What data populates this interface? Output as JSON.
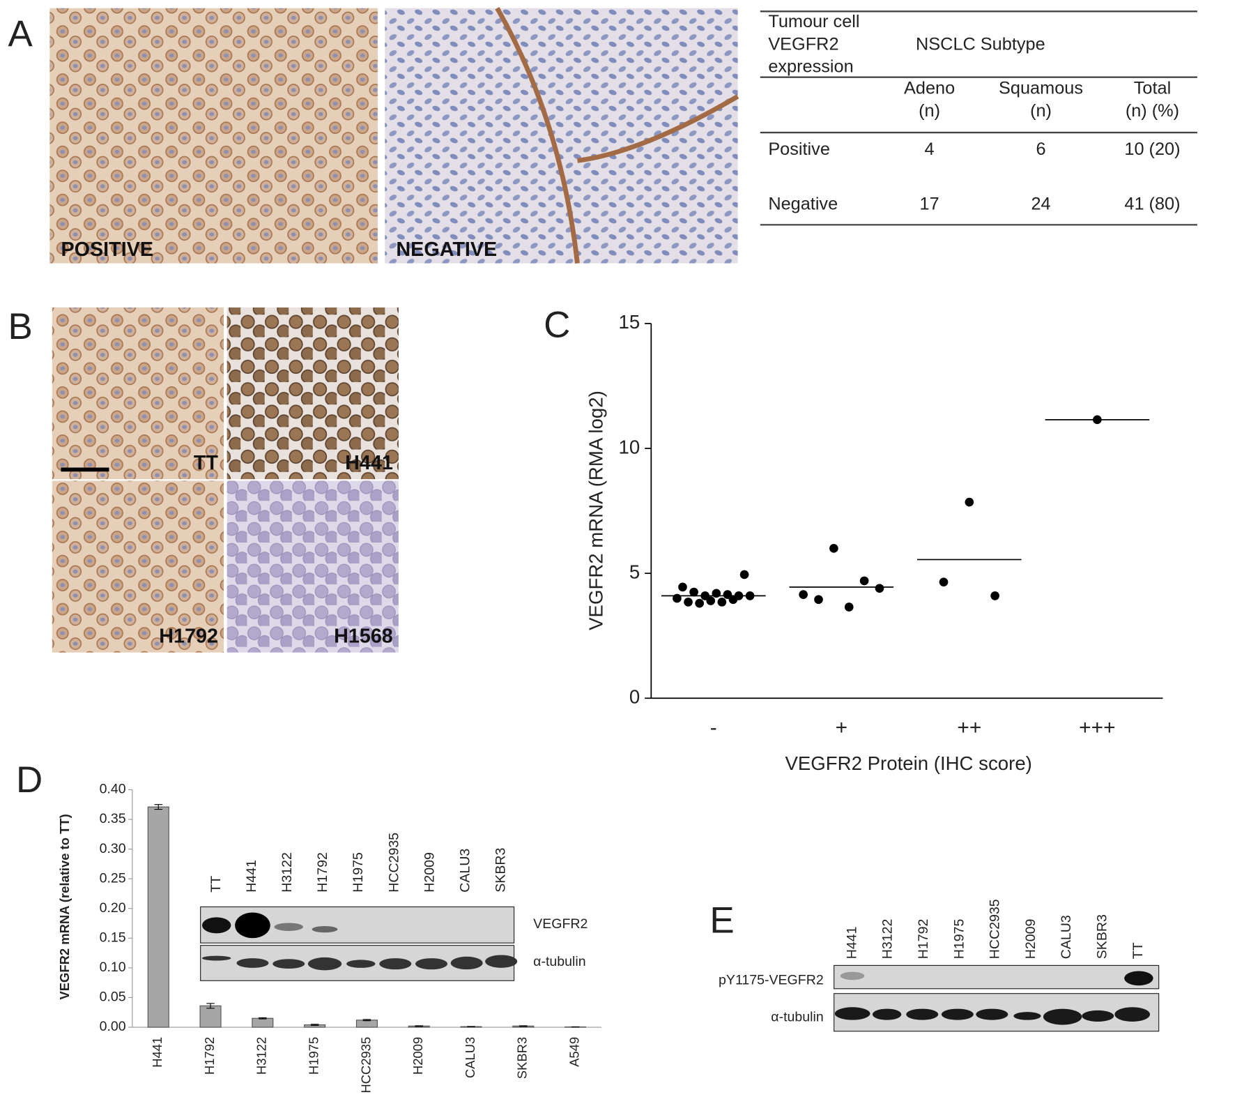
{
  "panel_labels": [
    "A",
    "B",
    "C",
    "D",
    "E"
  ],
  "micrographs": {
    "panel_a": [
      "POSITIVE",
      "NEGATIVE"
    ],
    "panel_b": [
      "TT",
      "H441",
      "H1792",
      "H1568"
    ]
  },
  "table": {
    "row_header": [
      "Tumour cell",
      "VEGFR2",
      "expression"
    ],
    "group_header": "NSCLC Subtype",
    "columns": [
      [
        "Adeno",
        "(n)"
      ],
      [
        "Squamous",
        "(n)"
      ],
      [
        "Total",
        "(n) (%)"
      ]
    ],
    "rows": [
      [
        "Positive",
        4,
        6,
        "10 (20)"
      ],
      [
        "Negative",
        17,
        24,
        "41 (80)"
      ]
    ]
  },
  "chart_data": [
    {
      "type": "dot",
      "x_label": "VEGFR2 Protein (IHC score)",
      "y_label": "VEGFR2 mRNA (RMA log2)",
      "categories": [
        "-",
        "+",
        "++",
        "+++"
      ],
      "groups": [
        [
          4.0,
          4.45,
          3.85,
          4.25,
          3.8,
          4.1,
          3.9,
          4.2,
          3.85,
          4.15,
          3.95,
          4.1,
          4.95,
          4.1
        ],
        [
          4.15,
          3.95,
          6.0,
          3.65,
          4.7,
          4.4
        ],
        [
          4.65,
          7.85,
          4.1
        ],
        [
          11.15
        ]
      ],
      "means": [
        4.1,
        4.45,
        5.55,
        11.15
      ],
      "color": "#000000",
      "ylim": [
        0,
        15
      ],
      "yticks": [
        0,
        5,
        10,
        15
      ]
    },
    {
      "type": "bar",
      "y_label": "VEGFR2 mRNA (relative to TT)",
      "categories": [
        "H441",
        "H1792",
        "H3122",
        "H1975",
        "HCC2935",
        "H2009",
        "CALU3",
        "SKBR3",
        "A549"
      ],
      "values": [
        0.371,
        0.036,
        0.015,
        0.004,
        0.012,
        0.002,
        0.001,
        0.002,
        0.0005
      ],
      "errors": [
        0.004,
        0.004,
        0.001,
        0.001,
        0.001,
        0.0005,
        0.0003,
        0.0005,
        0.0002
      ],
      "color": "#a6a6a6",
      "ylim": [
        0,
        0.4
      ],
      "yticks": [
        {
          "value": 0,
          "label": "0.00"
        },
        {
          "value": 0.05,
          "label": "0.05"
        },
        {
          "value": 0.1,
          "label": "0.10"
        },
        {
          "value": 0.15,
          "label": "0.15"
        },
        {
          "value": 0.2,
          "label": "0.20"
        },
        {
          "value": 0.25,
          "label": "0.25"
        },
        {
          "value": 0.3,
          "label": "0.30"
        },
        {
          "value": 0.35,
          "label": "0.35"
        },
        {
          "value": 0.4,
          "label": "0.40"
        }
      ]
    }
  ],
  "blots": {
    "panel_d": {
      "lanes": [
        "TT",
        "H441",
        "H3122",
        "H1792",
        "H1975",
        "HCC2935",
        "H2009",
        "CALU3",
        "SKBR3"
      ],
      "rows": [
        "VEGFR2",
        "α-tubulin"
      ]
    },
    "panel_e": {
      "lanes": [
        "H441",
        "H3122",
        "H1792",
        "H1975",
        "HCC2935",
        "H2009",
        "CALU3",
        "SKBR3",
        "TT"
      ],
      "rows": [
        "pY1175-VEGFR2",
        "α-tubulin"
      ]
    }
  }
}
